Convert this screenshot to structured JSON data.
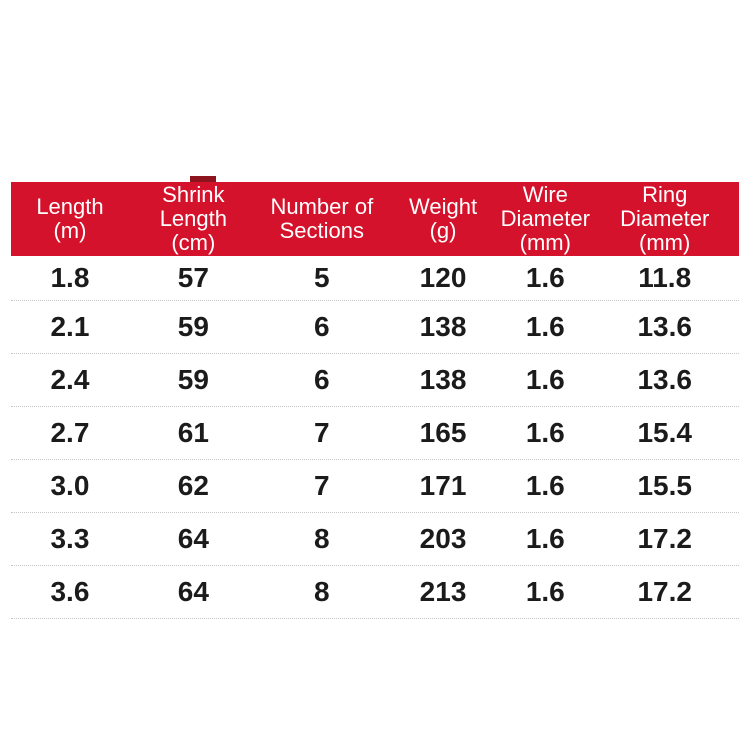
{
  "colors": {
    "background": "#ffffff",
    "accent": "#d5122b",
    "accent-dark": "#8c141e",
    "separator": "#c6c6c6",
    "ink": "#1b1b1b",
    "header-ink": "#ffffff"
  },
  "table": {
    "columns": [
      "Length\n(m)",
      "Shrink\nLength\n(cm)",
      "Number of\nSections",
      "Weight\n(g)",
      "Wire\nDiameter\n(mm)",
      "Ring\nDiameter\n(mm)"
    ],
    "rows": [
      [
        "1.8",
        "57",
        "5",
        "120",
        "1.6",
        "11.8"
      ],
      [
        "2.1",
        "59",
        "6",
        "138",
        "1.6",
        "13.6"
      ],
      [
        "2.4",
        "59",
        "6",
        "138",
        "1.6",
        "13.6"
      ],
      [
        "2.7",
        "61",
        "7",
        "165",
        "1.6",
        "15.4"
      ],
      [
        "3.0",
        "62",
        "7",
        "171",
        "1.6",
        "15.5"
      ],
      [
        "3.3",
        "64",
        "8",
        "203",
        "1.6",
        "17.2"
      ],
      [
        "3.6",
        "64",
        "8",
        "213",
        "1.6",
        "17.2"
      ]
    ]
  }
}
